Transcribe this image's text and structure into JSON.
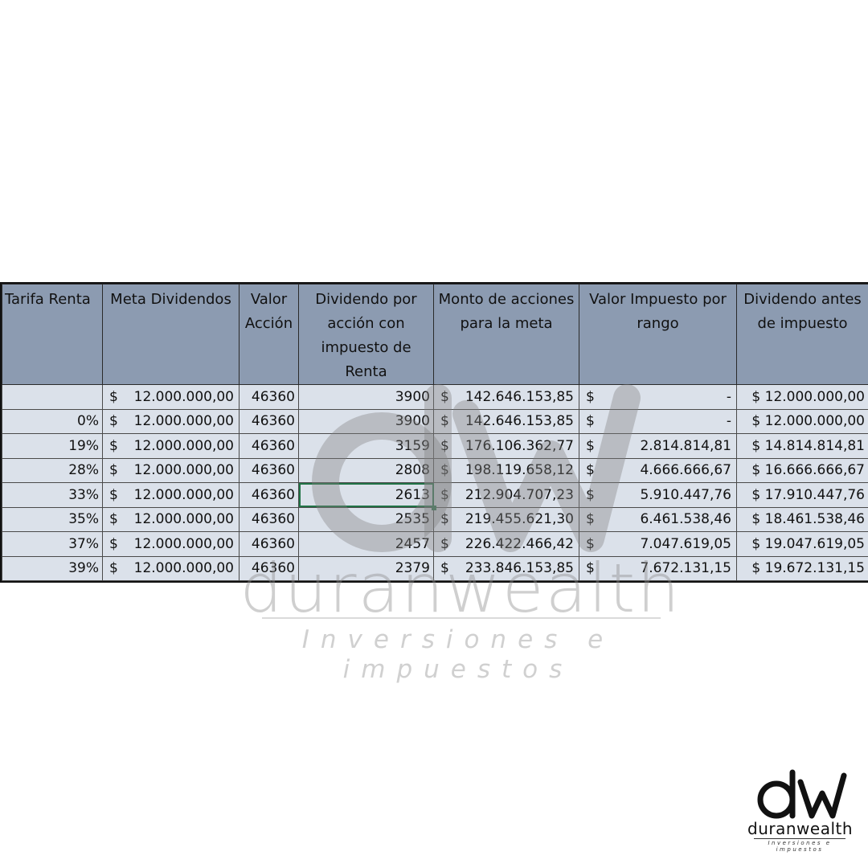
{
  "table": {
    "headers": [
      "Tarifa Renta",
      "Meta Dividendos",
      "Valor Acción",
      "Dividendo por acción con impuesto de Renta",
      "Monto de acciones para la meta",
      "Valor Impuesto por rango",
      "Dividendo antes de impuesto"
    ],
    "currency_symbol": "$",
    "rows": [
      {
        "tarifa": "",
        "meta": "12.000.000,00",
        "valor": "46360",
        "dividendo": "3900",
        "monto": "142.646.153,85",
        "impuesto": "-",
        "antes": "$ 12.000.000,00"
      },
      {
        "tarifa": "0%",
        "meta": "12.000.000,00",
        "valor": "46360",
        "dividendo": "3900",
        "monto": "142.646.153,85",
        "impuesto": "-",
        "antes": "$ 12.000.000,00"
      },
      {
        "tarifa": "19%",
        "meta": "12.000.000,00",
        "valor": "46360",
        "dividendo": "3159",
        "monto": "176.106.362,77",
        "impuesto": "2.814.814,81",
        "antes": "$ 14.814.814,81"
      },
      {
        "tarifa": "28%",
        "meta": "12.000.000,00",
        "valor": "46360",
        "dividendo": "2808",
        "monto": "198.119.658,12",
        "impuesto": "4.666.666,67",
        "antes": "$ 16.666.666,67"
      },
      {
        "tarifa": "33%",
        "meta": "12.000.000,00",
        "valor": "46360",
        "dividendo": "2613",
        "monto": "212.904.707,23",
        "impuesto": "5.910.447,76",
        "antes": "$ 17.910.447,76"
      },
      {
        "tarifa": "35%",
        "meta": "12.000.000,00",
        "valor": "46360",
        "dividendo": "2535",
        "monto": "219.455.621,30",
        "impuesto": "6.461.538,46",
        "antes": "$ 18.461.538,46"
      },
      {
        "tarifa": "37%",
        "meta": "12.000.000,00",
        "valor": "46360",
        "dividendo": "2457",
        "monto": "226.422.466,42",
        "impuesto": "7.047.619,05",
        "antes": "$ 19.047.619,05"
      },
      {
        "tarifa": "39%",
        "meta": "12.000.000,00",
        "valor": "46360",
        "dividendo": "2379",
        "monto": "233.846.153,85",
        "impuesto": "7.672.131,15",
        "antes": "$ 19.672.131,15"
      }
    ],
    "selected_cell": "row 5, Dividendo por acción con impuesto de Renta"
  },
  "watermark": {
    "brand": "duranwealth",
    "tagline": "Inversiones e impuestos"
  },
  "logo": {
    "brand": "duranwealth",
    "tagline": "Inversiones e impuestos"
  },
  "colors": {
    "header_bg": "#8c9bb1",
    "cell_bg": "#dbe1ea",
    "selection": "#217346"
  }
}
